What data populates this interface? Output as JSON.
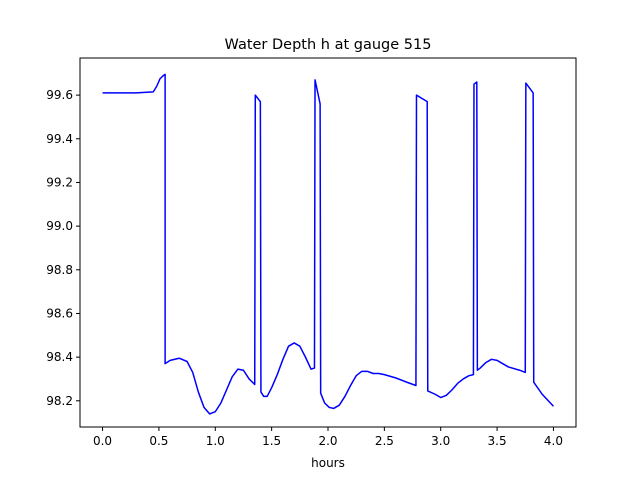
{
  "chart_data": {
    "type": "line",
    "title": "Water Depth h at gauge 515",
    "xlabel": "hours",
    "ylabel": "",
    "xlim": [
      -0.2,
      4.2
    ],
    "ylim": [
      98.08,
      99.77
    ],
    "xticks": [
      0.0,
      0.5,
      1.0,
      1.5,
      2.0,
      2.5,
      3.0,
      3.5,
      4.0
    ],
    "xtick_labels": [
      "0.0",
      "0.5",
      "1.0",
      "1.5",
      "2.0",
      "2.5",
      "3.0",
      "3.5",
      "4.0"
    ],
    "yticks": [
      98.2,
      98.4,
      98.6,
      98.8,
      99.0,
      99.2,
      99.4,
      99.6
    ],
    "ytick_labels": [
      "98.2",
      "98.4",
      "98.6",
      "98.8",
      "99.0",
      "99.2",
      "99.4",
      "99.6"
    ],
    "grid": false,
    "series": [
      {
        "color": "#0000ff",
        "x": [
          0.0,
          0.3,
          0.45,
          0.48,
          0.51,
          0.54,
          0.555,
          0.555,
          0.6,
          0.68,
          0.75,
          0.8,
          0.85,
          0.9,
          0.95,
          1.0,
          1.05,
          1.1,
          1.15,
          1.2,
          1.25,
          1.3,
          1.35,
          1.355,
          1.4,
          1.405,
          1.43,
          1.46,
          1.5,
          1.55,
          1.6,
          1.65,
          1.7,
          1.75,
          1.8,
          1.85,
          1.88,
          1.885,
          1.93,
          1.935,
          1.97,
          2.01,
          2.05,
          2.1,
          2.15,
          2.2,
          2.25,
          2.3,
          2.35,
          2.4,
          2.45,
          2.5,
          2.6,
          2.7,
          2.78,
          2.785,
          2.88,
          2.885,
          2.95,
          3.0,
          3.05,
          3.1,
          3.15,
          3.2,
          3.25,
          3.29,
          3.295,
          3.32,
          3.325,
          3.35,
          3.4,
          3.45,
          3.5,
          3.55,
          3.6,
          3.7,
          3.75,
          3.755,
          3.82,
          3.825,
          3.9,
          4.0
        ],
        "y": [
          99.61,
          99.61,
          99.615,
          99.64,
          99.675,
          99.69,
          99.695,
          98.37,
          98.385,
          98.395,
          98.38,
          98.33,
          98.24,
          98.17,
          98.14,
          98.15,
          98.19,
          98.25,
          98.31,
          98.345,
          98.34,
          98.3,
          98.275,
          99.6,
          99.57,
          98.24,
          98.22,
          98.22,
          98.26,
          98.32,
          98.39,
          98.45,
          98.465,
          98.45,
          98.4,
          98.345,
          98.35,
          99.67,
          99.56,
          98.235,
          98.19,
          98.17,
          98.165,
          98.18,
          98.22,
          98.27,
          98.315,
          98.335,
          98.335,
          98.325,
          98.325,
          98.32,
          98.305,
          98.285,
          98.27,
          99.6,
          99.57,
          98.245,
          98.23,
          98.215,
          98.225,
          98.25,
          98.28,
          98.3,
          98.315,
          98.32,
          99.65,
          99.66,
          98.34,
          98.35,
          98.375,
          98.39,
          98.385,
          98.37,
          98.355,
          98.34,
          98.33,
          99.655,
          99.61,
          98.285,
          98.23,
          98.175
        ]
      }
    ]
  }
}
